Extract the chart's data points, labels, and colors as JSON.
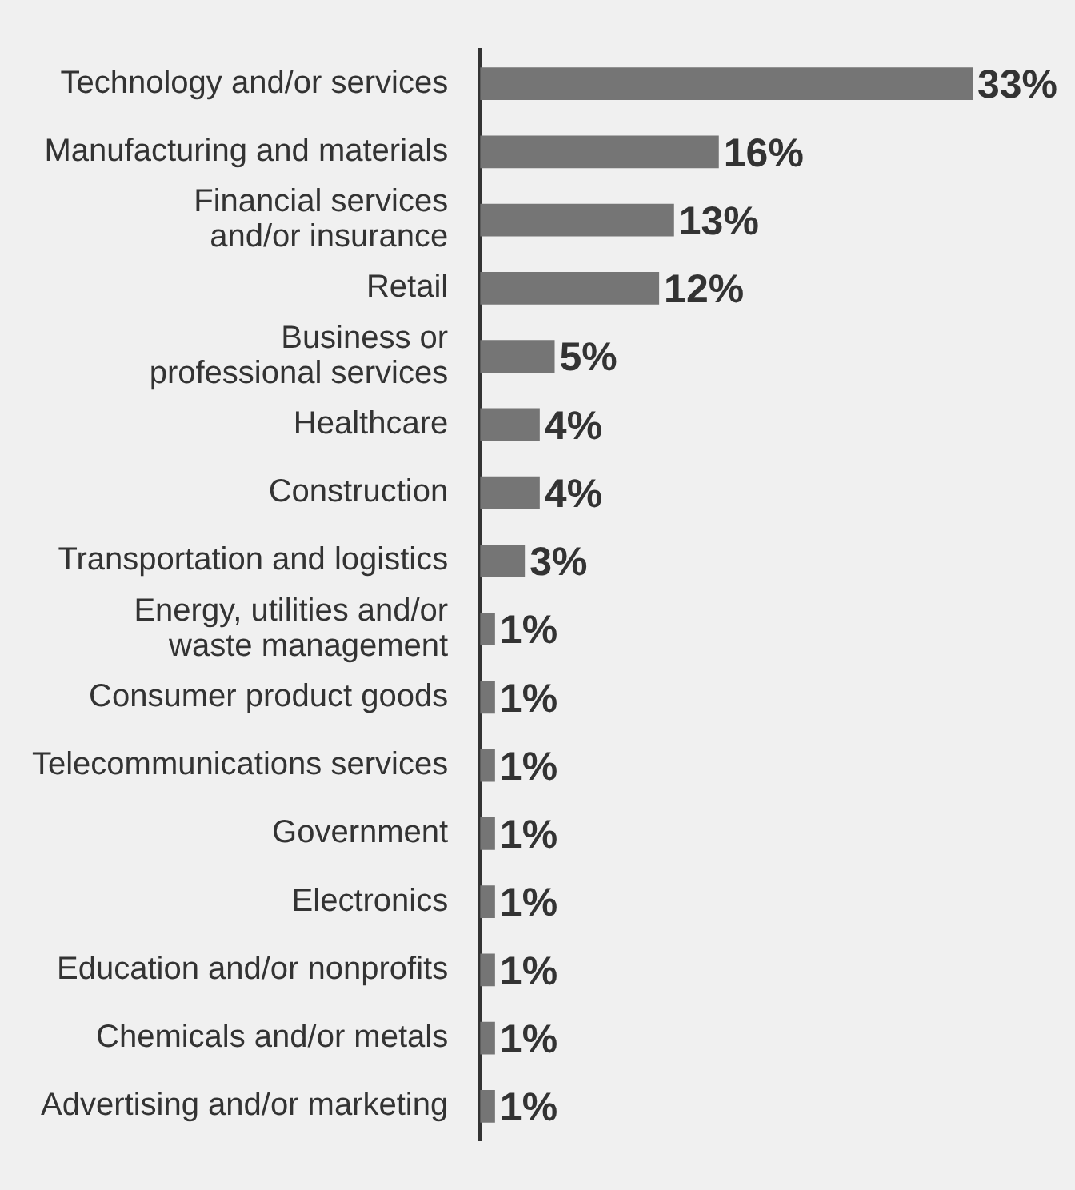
{
  "chart_data": {
    "type": "bar",
    "orientation": "horizontal",
    "categories": [
      "Technology and/or services",
      "Manufacturing and materials",
      "Financial services\nand/or insurance",
      "Retail",
      "Business or\nprofessional services",
      "Healthcare",
      "Construction",
      "Transportation and logistics",
      "Energy, utilities and/or\nwaste management",
      "Consumer product goods",
      "Telecommunications services",
      "Government",
      "Electronics",
      "Education and/or nonprofits",
      "Chemicals and/or metals",
      "Advertising and/or marketing"
    ],
    "values": [
      33,
      16,
      13,
      12,
      5,
      4,
      4,
      3,
      1,
      1,
      1,
      1,
      1,
      1,
      1,
      1
    ],
    "value_labels": [
      "33%",
      "16%",
      "13%",
      "12%",
      "5%",
      "4%",
      "4%",
      "3%",
      "1%",
      "1%",
      "1%",
      "1%",
      "1%",
      "1%",
      "1%",
      "1%"
    ],
    "color": "#757575"
  }
}
